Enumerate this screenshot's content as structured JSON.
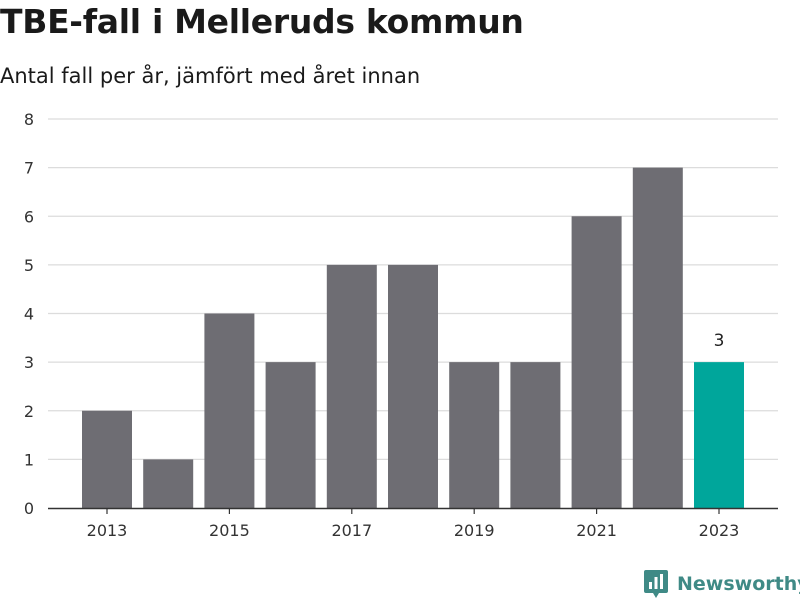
{
  "chart_data": {
    "type": "bar",
    "title": "TBE-fall i Melleruds kommun",
    "subtitle": "Antal fall per år, jämfört med året innan",
    "xlabel": "",
    "ylabel": "",
    "categories": [
      "2013",
      "2014",
      "2015",
      "2016",
      "2017",
      "2018",
      "2019",
      "2020",
      "2021",
      "2022",
      "2023"
    ],
    "values": [
      2,
      1,
      4,
      3,
      5,
      5,
      3,
      3,
      6,
      7,
      3
    ],
    "x_tick_labels": [
      "2013",
      "2015",
      "2017",
      "2019",
      "2021",
      "2023"
    ],
    "y_ticks": [
      "0",
      "1",
      "2",
      "3",
      "4",
      "5",
      "6",
      "7",
      "8"
    ],
    "ylim": [
      0,
      8
    ],
    "grid": true,
    "highlighted_category": "2023",
    "highlight_label": "3",
    "bar_color": "#6e6d73",
    "highlight_color": "#00a69b"
  },
  "brand": {
    "name": "Newsworthy",
    "logo_icon": "bar-chart-logo-icon",
    "color": "#3f8a86"
  }
}
